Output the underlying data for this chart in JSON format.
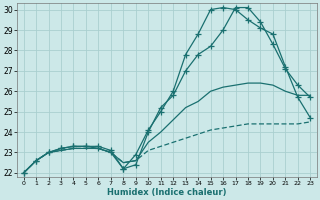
{
  "xlabel": "Humidex (Indice chaleur)",
  "bg_color": "#cce8e8",
  "grid_color": "#aacfcf",
  "line_color": "#1a7070",
  "xlim": [
    -0.5,
    23.5
  ],
  "ylim": [
    21.8,
    30.3
  ],
  "xticks": [
    0,
    1,
    2,
    3,
    4,
    5,
    6,
    7,
    8,
    9,
    10,
    11,
    12,
    13,
    14,
    15,
    16,
    17,
    18,
    19,
    20,
    21,
    22,
    23
  ],
  "yticks": [
    22,
    23,
    24,
    25,
    26,
    27,
    28,
    29,
    30
  ],
  "line1_x": [
    0,
    1,
    2,
    3,
    4,
    5,
    6,
    7,
    8,
    9,
    10,
    11,
    12,
    13,
    14,
    15,
    16,
    17,
    18,
    19,
    20,
    21,
    22,
    23
  ],
  "line1_y": [
    22.0,
    22.6,
    23.0,
    23.1,
    23.2,
    23.2,
    23.2,
    23.0,
    22.5,
    22.6,
    23.1,
    23.3,
    23.5,
    23.7,
    23.9,
    24.1,
    24.2,
    24.3,
    24.4,
    24.4,
    24.4,
    24.4,
    24.4,
    24.5
  ],
  "line2_x": [
    0,
    1,
    2,
    3,
    4,
    5,
    6,
    7,
    8,
    9,
    10,
    11,
    12,
    13,
    14,
    15,
    16,
    17,
    18,
    19,
    20,
    21,
    22,
    23
  ],
  "line2_y": [
    22.0,
    22.6,
    23.0,
    23.1,
    23.2,
    23.2,
    23.2,
    23.0,
    22.5,
    22.6,
    23.5,
    24.0,
    24.6,
    25.2,
    25.5,
    26.0,
    26.2,
    26.3,
    26.4,
    26.4,
    26.3,
    26.0,
    25.8,
    25.8
  ],
  "line3_x": [
    0,
    1,
    2,
    3,
    4,
    5,
    6,
    7,
    8,
    9,
    10,
    11,
    12,
    13,
    14,
    15,
    16,
    17,
    18,
    19,
    20,
    21,
    22,
    23
  ],
  "line3_y": [
    22.0,
    22.6,
    23.0,
    23.2,
    23.3,
    23.3,
    23.3,
    23.1,
    22.2,
    22.4,
    24.0,
    25.2,
    25.8,
    27.0,
    27.8,
    28.2,
    29.0,
    30.1,
    30.1,
    29.4,
    28.3,
    27.1,
    26.3,
    25.7
  ],
  "line4_x": [
    0,
    1,
    2,
    3,
    4,
    5,
    6,
    7,
    8,
    9,
    10,
    11,
    12,
    13,
    14,
    15,
    16,
    17,
    18,
    19,
    20,
    21,
    22,
    23
  ],
  "line4_y": [
    22.0,
    22.6,
    23.0,
    23.2,
    23.3,
    23.3,
    23.2,
    23.0,
    22.2,
    22.9,
    24.1,
    25.0,
    26.0,
    27.8,
    28.8,
    30.0,
    30.1,
    30.0,
    29.5,
    29.1,
    28.8,
    27.2,
    25.7,
    24.7
  ]
}
